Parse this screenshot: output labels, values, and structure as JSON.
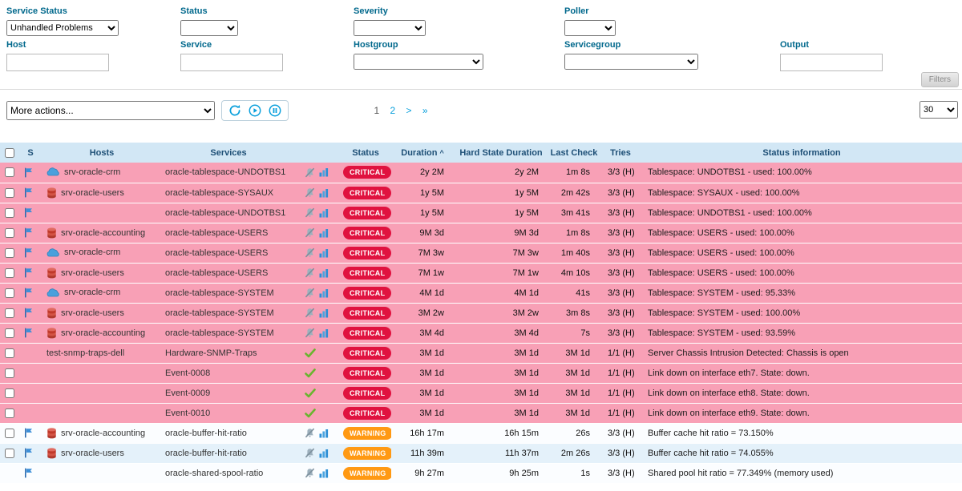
{
  "colors": {
    "accent-blue": "#0aa0dc",
    "critical": "#e0123f",
    "warning": "#ff9913",
    "critical-row": "#f8a0b6",
    "header-bg": "#d2e7f5",
    "header-text": "#1d4f76",
    "label-teal": "#00688c"
  },
  "filters": {
    "service_status": {
      "label": "Service Status",
      "value": "Unhandled Problems"
    },
    "status": {
      "label": "Status",
      "value": ""
    },
    "severity": {
      "label": "Severity",
      "value": ""
    },
    "poller": {
      "label": "Poller",
      "value": ""
    },
    "host": {
      "label": "Host",
      "value": ""
    },
    "service": {
      "label": "Service",
      "value": ""
    },
    "hostgroup": {
      "label": "Hostgroup",
      "value": ""
    },
    "servicegroup": {
      "label": "Servicegroup",
      "value": ""
    },
    "output": {
      "label": "Output",
      "value": ""
    },
    "filters_button": "Filters"
  },
  "toolbar": {
    "more_actions": "More actions...",
    "pagination": {
      "current": "1",
      "page2": "2",
      "next": ">",
      "last": "»"
    },
    "page_size": "30"
  },
  "table": {
    "headers": [
      "S",
      "Hosts",
      "Services",
      "",
      "Status",
      "Duration",
      "Hard State Duration",
      "Last Check",
      "Tries",
      "Status information"
    ],
    "sort_indicator": "^",
    "rows": [
      {
        "checkbox": true,
        "flag": true,
        "host_icon": "cloud",
        "host": "srv-oracle-crm",
        "service": "oracle-tablespace-UNDOTBS1",
        "icons": "bell_chart",
        "status": "CRITICAL",
        "duration": "2y 2M",
        "hard_state_duration": "2y 2M",
        "last_check": "1m 8s",
        "tries": "3/3 (H)",
        "info": "Tablespace: UNDOTBS1 - used: 100.00%",
        "bg": "critical"
      },
      {
        "checkbox": true,
        "flag": true,
        "host_icon": "db",
        "host": "srv-oracle-users",
        "service": "oracle-tablespace-SYSAUX",
        "icons": "bell_chart",
        "status": "CRITICAL",
        "duration": "1y 5M",
        "hard_state_duration": "1y 5M",
        "last_check": "2m 42s",
        "tries": "3/3 (H)",
        "info": "Tablespace: SYSAUX - used: 100.00%",
        "bg": "critical"
      },
      {
        "checkbox": true,
        "flag": true,
        "host_icon": "",
        "host": "",
        "service": "oracle-tablespace-UNDOTBS1",
        "icons": "bell_chart",
        "status": "CRITICAL",
        "duration": "1y 5M",
        "hard_state_duration": "1y 5M",
        "last_check": "3m 41s",
        "tries": "3/3 (H)",
        "info": "Tablespace: UNDOTBS1 - used: 100.00%",
        "bg": "critical"
      },
      {
        "checkbox": true,
        "flag": true,
        "host_icon": "db",
        "host": "srv-oracle-accounting",
        "service": "oracle-tablespace-USERS",
        "icons": "bell_chart",
        "status": "CRITICAL",
        "duration": "9M 3d",
        "hard_state_duration": "9M 3d",
        "last_check": "1m 8s",
        "tries": "3/3 (H)",
        "info": "Tablespace: USERS - used: 100.00%",
        "bg": "critical"
      },
      {
        "checkbox": true,
        "flag": true,
        "host_icon": "cloud",
        "host": "srv-oracle-crm",
        "service": "oracle-tablespace-USERS",
        "icons": "bell_chart",
        "status": "CRITICAL",
        "duration": "7M 3w",
        "hard_state_duration": "7M 3w",
        "last_check": "1m 40s",
        "tries": "3/3 (H)",
        "info": "Tablespace: USERS - used: 100.00%",
        "bg": "critical"
      },
      {
        "checkbox": true,
        "flag": true,
        "host_icon": "db",
        "host": "srv-oracle-users",
        "service": "oracle-tablespace-USERS",
        "icons": "bell_chart",
        "status": "CRITICAL",
        "duration": "7M 1w",
        "hard_state_duration": "7M 1w",
        "last_check": "4m 10s",
        "tries": "3/3 (H)",
        "info": "Tablespace: USERS - used: 100.00%",
        "bg": "critical"
      },
      {
        "checkbox": true,
        "flag": true,
        "host_icon": "cloud",
        "host": "srv-oracle-crm",
        "service": "oracle-tablespace-SYSTEM",
        "icons": "bell_chart",
        "status": "CRITICAL",
        "duration": "4M 1d",
        "hard_state_duration": "4M 1d",
        "last_check": "41s",
        "tries": "3/3 (H)",
        "info": "Tablespace: SYSTEM - used: 95.33%",
        "bg": "critical"
      },
      {
        "checkbox": true,
        "flag": true,
        "host_icon": "db",
        "host": "srv-oracle-users",
        "service": "oracle-tablespace-SYSTEM",
        "icons": "bell_chart",
        "status": "CRITICAL",
        "duration": "3M 2w",
        "hard_state_duration": "3M 2w",
        "last_check": "3m 8s",
        "tries": "3/3 (H)",
        "info": "Tablespace: SYSTEM - used: 100.00%",
        "bg": "critical"
      },
      {
        "checkbox": true,
        "flag": true,
        "host_icon": "db",
        "host": "srv-oracle-accounting",
        "service": "oracle-tablespace-SYSTEM",
        "icons": "bell_chart",
        "status": "CRITICAL",
        "duration": "3M 4d",
        "hard_state_duration": "3M 4d",
        "last_check": "7s",
        "tries": "3/3 (H)",
        "info": "Tablespace: SYSTEM - used: 93.59%",
        "bg": "critical"
      },
      {
        "checkbox": true,
        "flag": false,
        "host_icon": "",
        "host": "test-snmp-traps-dell",
        "service": "Hardware-SNMP-Traps",
        "icons": "check",
        "status": "CRITICAL",
        "duration": "3M 1d",
        "hard_state_duration": "3M 1d",
        "last_check": "3M 1d",
        "tries": "1/1 (H)",
        "info": "Server Chassis Intrusion Detected: Chassis is open",
        "bg": "critical"
      },
      {
        "checkbox": true,
        "flag": false,
        "host_icon": "",
        "host": "",
        "service": "Event-0008",
        "icons": "check",
        "status": "CRITICAL",
        "duration": "3M 1d",
        "hard_state_duration": "3M 1d",
        "last_check": "3M 1d",
        "tries": "1/1 (H)",
        "info": "Link down on interface eth7. State: down.",
        "bg": "critical"
      },
      {
        "checkbox": true,
        "flag": false,
        "host_icon": "",
        "host": "",
        "service": "Event-0009",
        "icons": "check",
        "status": "CRITICAL",
        "duration": "3M 1d",
        "hard_state_duration": "3M 1d",
        "last_check": "3M 1d",
        "tries": "1/1 (H)",
        "info": "Link down on interface eth8. State: down.",
        "bg": "critical"
      },
      {
        "checkbox": true,
        "flag": false,
        "host_icon": "",
        "host": "",
        "service": "Event-0010",
        "icons": "check",
        "status": "CRITICAL",
        "duration": "3M 1d",
        "hard_state_duration": "3M 1d",
        "last_check": "3M 1d",
        "tries": "1/1 (H)",
        "info": "Link down on interface eth9. State: down.",
        "bg": "critical"
      },
      {
        "checkbox": true,
        "flag": true,
        "host_icon": "db",
        "host": "srv-oracle-accounting",
        "service": "oracle-buffer-hit-ratio",
        "icons": "bell_chart",
        "status": "WARNING",
        "duration": "16h 17m",
        "hard_state_duration": "16h 15m",
        "last_check": "26s",
        "tries": "3/3 (H)",
        "info": "Buffer cache hit ratio = 73.150%",
        "bg": "pale"
      },
      {
        "checkbox": true,
        "flag": true,
        "host_icon": "db",
        "host": "srv-oracle-users",
        "service": "oracle-buffer-hit-ratio",
        "icons": "bell_chart",
        "status": "WARNING",
        "duration": "11h 39m",
        "hard_state_duration": "11h 37m",
        "last_check": "2m 26s",
        "tries": "3/3 (H)",
        "info": "Buffer cache hit ratio = 74.055%",
        "bg": "light"
      },
      {
        "checkbox": false,
        "flag": true,
        "host_icon": "",
        "host": "",
        "service": "oracle-shared-spool-ratio",
        "icons": "bell_chart",
        "status": "WARNING",
        "duration": "9h 27m",
        "hard_state_duration": "9h 25m",
        "last_check": "1s",
        "tries": "3/3 (H)",
        "info": "Shared pool hit ratio = 77.349% (memory used)",
        "bg": "pale"
      }
    ]
  }
}
